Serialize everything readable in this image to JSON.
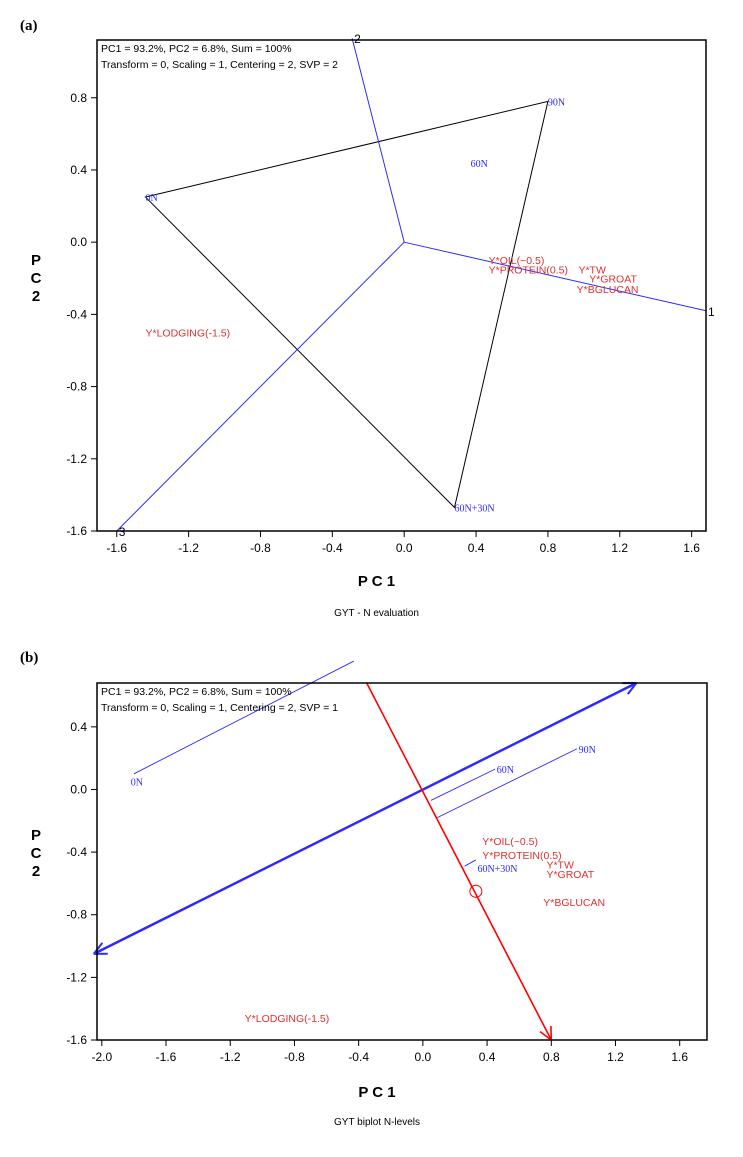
{
  "chart_data": [
    {
      "type": "scatter",
      "panel_label": "(a)",
      "caption": "GYT - N evaluation",
      "xlabel": "P C 1",
      "ylabel": [
        "P",
        "C",
        "2"
      ],
      "info": [
        "PC1 = 93.2%, PC2 = 6.8%, Sum = 100%",
        "Transform = 0, Scaling = 1, Centering = 2, SVP = 2"
      ],
      "xlim": [
        -1.71,
        1.68
      ],
      "ylim": [
        -1.6,
        1.12
      ],
      "xticks": [
        -1.6,
        -1.2,
        -0.8,
        -0.4,
        0.0,
        0.4,
        0.8,
        1.2,
        1.6
      ],
      "xtick_labels": [
        "-1.6",
        "-1.2",
        "-0.8",
        "-0.4",
        "0.0",
        "0.4",
        "0.8",
        "1.2",
        "1.6"
      ],
      "yticks": [
        0.8,
        0.4,
        0.0,
        -0.4,
        -0.8,
        -1.2,
        -1.6
      ],
      "ytick_labels": [
        "0.8",
        "0.4",
        "0.0",
        "-0.4",
        "-0.8",
        "-1.2",
        "-1.6"
      ],
      "polygon": [
        [
          -1.44,
          0.25
        ],
        [
          0.8,
          0.78
        ],
        [
          0.28,
          -1.47
        ]
      ],
      "sector_rays": [
        {
          "label": "1",
          "end": [
            1.68,
            -0.38
          ]
        },
        {
          "label": "2",
          "end": [
            -0.29,
            1.13
          ]
        },
        {
          "label": "3",
          "end": [
            -1.6,
            -1.6
          ]
        }
      ],
      "genotypes": [
        {
          "label": "0N",
          "x": -1.44,
          "y": 0.25
        },
        {
          "label": "90N",
          "x": 0.8,
          "y": 0.78
        },
        {
          "label": "60N",
          "x": 0.37,
          "y": 0.44
        },
        {
          "label": "60N+30N",
          "x": 0.28,
          "y": -1.47
        }
      ],
      "traits": [
        {
          "label": "Y*OIL(~0.5)",
          "x": 0.47,
          "y": -0.1
        },
        {
          "label": "Y*PROTEIN(0.5)",
          "x": 0.47,
          "y": -0.15
        },
        {
          "label": "Y*TW",
          "x": 0.97,
          "y": -0.15
        },
        {
          "label": "Y*GROAT",
          "x": 1.03,
          "y": -0.2
        },
        {
          "label": "Y*BGLUCAN",
          "x": 0.96,
          "y": -0.26
        },
        {
          "label": "Y*LODGING(-1.5)",
          "x": -1.44,
          "y": -0.5
        }
      ]
    },
    {
      "type": "scatter",
      "panel_label": "(b)",
      "caption": "GYT biplot N-levels",
      "xlabel": "P C 1",
      "ylabel": [
        "P",
        "C",
        "2"
      ],
      "info": [
        "PC1 = 93.2%, PC2 = 6.8%, Sum = 100%",
        "Transform = 0, Scaling = 1, Centering = 2, SVP = 1"
      ],
      "xlim": [
        -2.03,
        1.77
      ],
      "ylim": [
        -1.6,
        0.68
      ],
      "xticks": [
        -2.0,
        -1.6,
        -1.2,
        -0.8,
        -0.4,
        0.0,
        0.4,
        0.8,
        1.2,
        1.6
      ],
      "xtick_labels": [
        "-2.0",
        "-1.6",
        "-1.2",
        "-0.8",
        "-0.4",
        "0.0",
        "0.4",
        "0.8",
        "1.2",
        "1.6"
      ],
      "yticks": [
        0.4,
        0.0,
        -0.4,
        -0.8,
        -1.2,
        -1.6
      ],
      "ytick_labels": [
        "0.4",
        "0.0",
        "-0.4",
        "-0.8",
        "-1.2",
        "-1.6"
      ],
      "atc_abscissa": [
        [
          -2.05,
          -1.05
        ],
        [
          1.33,
          0.68
        ]
      ],
      "atc_ordinate": [
        [
          -0.35,
          0.68
        ],
        [
          0.8,
          -1.6
        ]
      ],
      "ideal_circle": [
        0.33,
        -0.65
      ],
      "projections": [
        [
          [
            -1.8,
            0.1
          ],
          [
            -0.43,
            0.82
          ]
        ],
        [
          [
            0.05,
            -0.07
          ],
          [
            0.45,
            0.13
          ]
        ],
        [
          [
            0.09,
            -0.18
          ],
          [
            0.96,
            0.26
          ]
        ],
        [
          [
            0.26,
            -0.49
          ],
          [
            0.33,
            -0.45
          ]
        ]
      ],
      "genotypes": [
        {
          "label": "0N",
          "x": -1.82,
          "y": 0.05
        },
        {
          "label": "60N",
          "x": 0.46,
          "y": 0.13
        },
        {
          "label": "90N",
          "x": 0.97,
          "y": 0.26
        },
        {
          "label": "60N+30N",
          "x": 0.34,
          "y": -0.5
        }
      ],
      "traits": [
        {
          "label": "Y*OIL(~0.5)",
          "x": 0.37,
          "y": -0.33
        },
        {
          "label": "Y*PROTEIN(0.5)",
          "x": 0.37,
          "y": -0.42
        },
        {
          "label": "Y*TW",
          "x": 0.77,
          "y": -0.48
        },
        {
          "label": "Y*GROAT",
          "x": 0.77,
          "y": -0.54
        },
        {
          "label": "Y*BGLUCAN",
          "x": 0.75,
          "y": -0.72
        },
        {
          "label": "Y*LODGING(-1.5)",
          "x": -1.11,
          "y": -1.46
        }
      ]
    }
  ],
  "colors": {
    "genotype": "#2b2bff",
    "trait": "#e03030",
    "polygon": "#000000",
    "ray": "#2b2bff",
    "ordinate": "#ff0000"
  }
}
